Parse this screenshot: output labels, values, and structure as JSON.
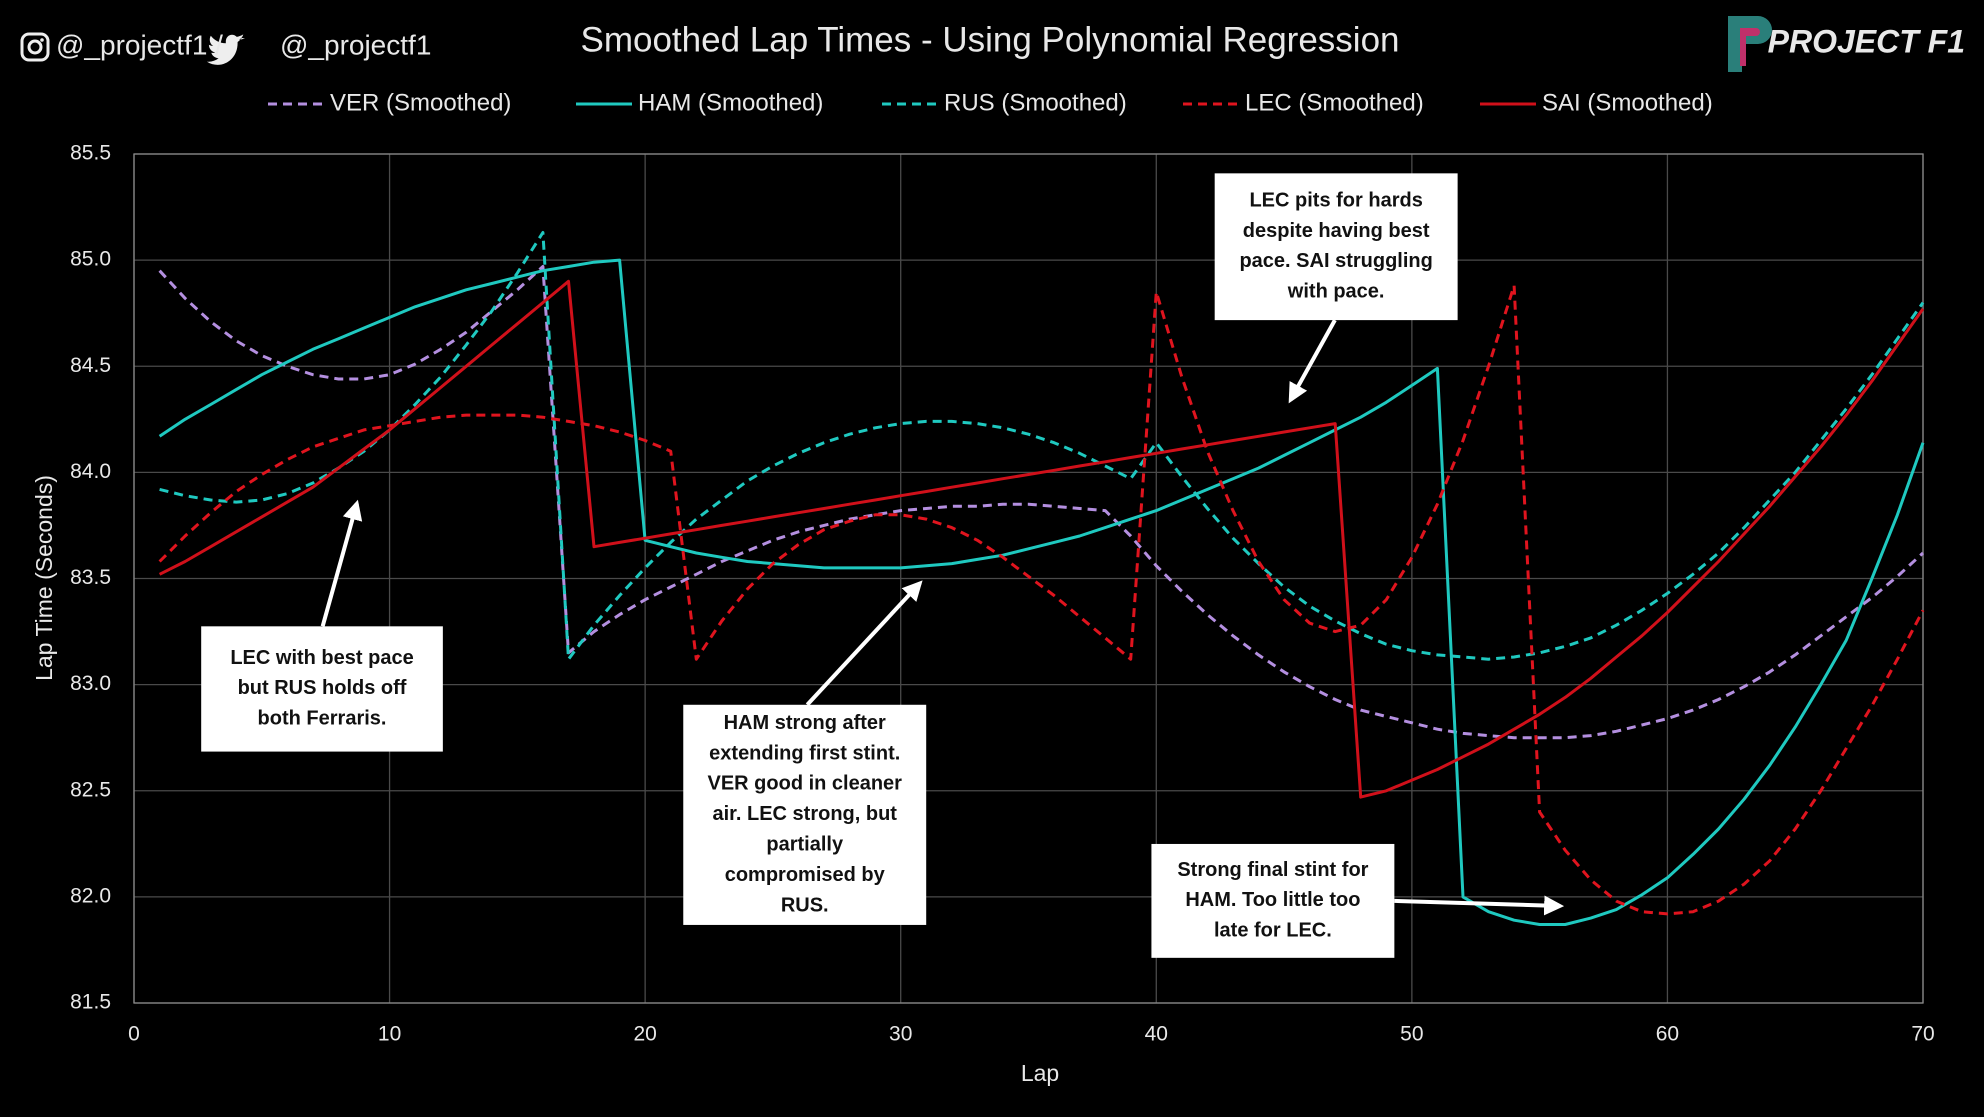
{
  "chart_data": {
    "type": "line",
    "title": "Smoothed Lap Times - Using Polynomial Regression",
    "handles": [
      "@_projectf1 /",
      "@_projectf1"
    ],
    "logo": "PROJECT F1",
    "x_label": "Lap",
    "y_label": "Lap Time (Seconds)",
    "x": [
      1,
      2,
      3,
      4,
      5,
      6,
      7,
      8,
      9,
      10,
      11,
      12,
      13,
      14,
      15,
      16,
      17,
      18,
      19,
      20,
      21,
      22,
      23,
      24,
      25,
      26,
      27,
      28,
      29,
      30,
      31,
      32,
      33,
      34,
      35,
      36,
      37,
      38,
      39,
      40,
      41,
      42,
      43,
      44,
      45,
      46,
      47,
      48,
      49,
      50,
      51,
      52,
      53,
      54,
      55,
      56,
      57,
      58,
      59,
      60,
      61,
      62,
      63,
      64,
      65,
      66,
      67,
      68,
      69,
      70
    ],
    "series": [
      {
        "name": "VER (Smoothed)",
        "color": "#b48fe0",
        "dashed": true,
        "values": [
          84.95,
          84.82,
          84.71,
          84.62,
          84.55,
          84.5,
          84.46,
          84.44,
          84.44,
          84.46,
          84.51,
          84.58,
          84.66,
          84.76,
          84.86,
          84.97,
          83.15,
          83.25,
          83.33,
          83.4,
          83.46,
          83.52,
          83.58,
          83.63,
          83.68,
          83.72,
          83.75,
          83.78,
          83.8,
          83.82,
          83.83,
          83.84,
          83.84,
          83.85,
          83.85,
          83.84,
          83.83,
          83.82,
          83.7,
          83.56,
          83.44,
          83.33,
          83.23,
          83.14,
          83.06,
          82.99,
          82.93,
          82.88,
          82.85,
          82.82,
          82.79,
          82.77,
          82.76,
          82.75,
          82.75,
          82.75,
          82.76,
          82.78,
          82.81,
          82.84,
          82.88,
          82.93,
          82.99,
          83.06,
          83.14,
          83.23,
          83.32,
          83.41,
          83.51,
          83.62
        ]
      },
      {
        "name": "HAM (Smoothed)",
        "color": "#1fc9c0",
        "dashed": false,
        "values": [
          84.17,
          84.25,
          84.32,
          84.39,
          84.46,
          84.52,
          84.58,
          84.63,
          84.68,
          84.73,
          84.78,
          84.82,
          84.86,
          84.89,
          84.92,
          84.95,
          84.97,
          84.99,
          85.0,
          83.68,
          83.65,
          83.62,
          83.6,
          83.58,
          83.57,
          83.56,
          83.55,
          83.55,
          83.55,
          83.55,
          83.56,
          83.57,
          83.59,
          83.61,
          83.64,
          83.67,
          83.7,
          83.74,
          83.78,
          83.82,
          83.87,
          83.92,
          83.97,
          84.02,
          84.08,
          84.14,
          84.2,
          84.26,
          84.33,
          84.41,
          84.49,
          82.0,
          81.93,
          81.89,
          81.87,
          81.87,
          81.9,
          81.94,
          82.01,
          82.09,
          82.2,
          82.32,
          82.46,
          82.62,
          82.8,
          83.0,
          83.21,
          83.5,
          83.8,
          84.14
        ]
      },
      {
        "name": "RUS (Smoothed)",
        "color": "#1fc9c0",
        "dashed": true,
        "values": [
          83.92,
          83.89,
          83.87,
          83.86,
          83.87,
          83.9,
          83.95,
          84.02,
          84.1,
          84.2,
          84.32,
          84.45,
          84.6,
          84.76,
          84.94,
          85.13,
          83.12,
          83.28,
          83.42,
          83.55,
          83.67,
          83.78,
          83.87,
          83.96,
          84.03,
          84.09,
          84.14,
          84.18,
          84.21,
          84.23,
          84.24,
          84.24,
          84.23,
          84.21,
          84.18,
          84.14,
          84.09,
          84.03,
          83.97,
          84.14,
          83.98,
          83.83,
          83.69,
          83.57,
          83.46,
          83.37,
          83.3,
          83.24,
          83.19,
          83.16,
          83.14,
          83.13,
          83.12,
          83.13,
          83.15,
          83.18,
          83.22,
          83.28,
          83.35,
          83.43,
          83.52,
          83.62,
          83.74,
          83.87,
          84.0,
          84.15,
          84.3,
          84.46,
          84.63,
          84.8
        ]
      },
      {
        "name": "LEC (Smoothed)",
        "color": "#e0141e",
        "dashed": true,
        "values": [
          83.58,
          83.7,
          83.81,
          83.91,
          83.99,
          84.06,
          84.12,
          84.16,
          84.2,
          84.22,
          84.24,
          84.26,
          84.27,
          84.27,
          84.27,
          84.26,
          84.24,
          84.22,
          84.19,
          84.15,
          84.1,
          83.12,
          83.3,
          83.45,
          83.57,
          83.66,
          83.73,
          83.77,
          83.8,
          83.8,
          83.78,
          83.74,
          83.68,
          83.6,
          83.51,
          83.42,
          83.32,
          83.22,
          83.12,
          84.85,
          84.45,
          84.1,
          83.82,
          83.58,
          83.4,
          83.29,
          83.25,
          83.28,
          83.4,
          83.6,
          83.85,
          84.15,
          84.5,
          84.88,
          82.4,
          82.22,
          82.08,
          81.98,
          81.93,
          81.92,
          81.93,
          81.98,
          82.06,
          82.17,
          82.32,
          82.5,
          82.7,
          82.9,
          83.12,
          83.35
        ]
      },
      {
        "name": "SAI (Smoothed)",
        "color": "#d0101a",
        "dashed": false,
        "values": [
          83.52,
          83.58,
          83.65,
          83.72,
          83.79,
          83.86,
          83.93,
          84.02,
          84.11,
          84.2,
          84.3,
          84.4,
          84.5,
          84.6,
          84.7,
          84.8,
          84.9,
          83.65,
          83.67,
          83.69,
          83.71,
          83.73,
          83.75,
          83.77,
          83.79,
          83.81,
          83.83,
          83.85,
          83.87,
          83.89,
          83.91,
          83.93,
          83.95,
          83.97,
          83.99,
          84.01,
          84.03,
          84.05,
          84.07,
          84.09,
          84.11,
          84.13,
          84.15,
          84.17,
          84.19,
          84.21,
          84.23,
          82.47,
          82.5,
          82.55,
          82.6,
          82.66,
          82.72,
          82.79,
          82.86,
          82.94,
          83.03,
          83.13,
          83.23,
          83.34,
          83.46,
          83.58,
          83.71,
          83.84,
          83.98,
          84.12,
          84.27,
          84.43,
          84.6,
          84.77
        ]
      }
    ],
    "xlim": [
      0,
      70
    ],
    "xticks": [
      0,
      10,
      20,
      30,
      40,
      50,
      60,
      70
    ],
    "ylim": [
      81.5,
      85.5
    ],
    "yticks": [
      81.5,
      {
        "value": 82,
        "label": "82.0"
      },
      82.5,
      {
        "value": 83,
        "label": "83.0"
      },
      83.5,
      {
        "value": 84,
        "label": "84.0"
      },
      84.5,
      {
        "value": 85,
        "label": "85.0"
      },
      85.5
    ],
    "grid": true,
    "legend": "top",
    "annotations": [
      {
        "lines": [
          "LEC with best pace",
          "but RUS holds off",
          "both Ferraris."
        ]
      },
      {
        "lines": [
          "HAM strong after",
          "extending first stint.",
          "VER good in cleaner",
          "air. LEC strong, but",
          "partially",
          "compromised by",
          "RUS."
        ]
      },
      {
        "lines": [
          "LEC pits for hards",
          "despite having best",
          "pace. SAI struggling",
          "with pace."
        ]
      },
      {
        "lines": [
          "Strong final stint for",
          "HAM. Too little too",
          "late for LEC."
        ]
      }
    ]
  }
}
